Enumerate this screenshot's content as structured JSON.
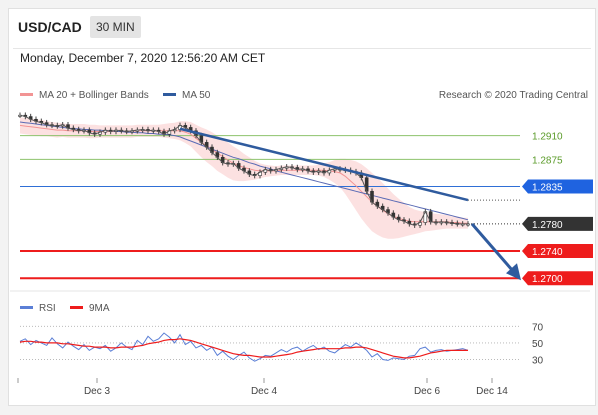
{
  "header": {
    "pair": "USD/CAD",
    "timeframe": "30 MIN"
  },
  "timestamp": "Monday, December 7, 2020 12:56:20 AM CET",
  "legend": {
    "ma20": "MA 20 + Bollinger Bands",
    "ma50": "MA 50",
    "credit": "Research © 2020 Trading Central"
  },
  "rsi_legend": {
    "rsi": "RSI",
    "ma9": "9MA"
  },
  "colors": {
    "accent_blue": "#2f5b9e",
    "resistance_green": "#8dc26c",
    "support_red": "#ee1c1c",
    "bollinger": "#fbdcdc",
    "ma20": "#f29494",
    "ma50": "#5a6bb5",
    "rsi": "#5b7fd6",
    "rsi_ma": "#ee1c1c"
  },
  "chart_data": [
    {
      "type": "candlestick",
      "x_ticks": [
        "Dec 3",
        "Dec 4",
        "Dec 6",
        "Dec 14"
      ],
      "ylim": [
        1.269,
        1.2955
      ],
      "levels": [
        {
          "value": "1.2910",
          "kind": "resistance"
        },
        {
          "value": "1.2875",
          "kind": "resistance"
        },
        {
          "value": "1.2835",
          "kind": "pivot"
        },
        {
          "value": "1.2780",
          "kind": "current"
        },
        {
          "value": "1.2740",
          "kind": "support"
        },
        {
          "value": "1.2700",
          "kind": "support"
        }
      ],
      "price_series": [
        1.294,
        1.2938,
        1.2934,
        1.2931,
        1.2929,
        1.2926,
        1.2925,
        1.2924,
        1.2926,
        1.2921,
        1.2919,
        1.2917,
        1.2918,
        1.2914,
        1.2912,
        1.2915,
        1.2918,
        1.2916,
        1.2918,
        1.2917,
        1.2916,
        1.2917,
        1.2918,
        1.2919,
        1.2917,
        1.2918,
        1.2916,
        1.2912,
        1.2917,
        1.2919,
        1.2925,
        1.2922,
        1.2917,
        1.291,
        1.29,
        1.2893,
        1.2885,
        1.2878,
        1.287,
        1.2868,
        1.2869,
        1.2862,
        1.2858,
        1.2853,
        1.2851,
        1.2856,
        1.286,
        1.2858,
        1.286,
        1.2862,
        1.2864,
        1.2863,
        1.286,
        1.2861,
        1.2858,
        1.2856,
        1.2858,
        1.2855,
        1.2859,
        1.2861,
        1.286,
        1.2859,
        1.2857,
        1.2855,
        1.2848,
        1.2828,
        1.2812,
        1.2806,
        1.2801,
        1.2796,
        1.279,
        1.2786,
        1.2784,
        1.278,
        1.2778,
        1.2782,
        1.2798,
        1.2783,
        1.2782,
        1.2783,
        1.2782,
        1.2781,
        1.278,
        1.278,
        1.278
      ],
      "ma20_series": [
        1.2925,
        1.2924,
        1.2923,
        1.2922,
        1.2921,
        1.292,
        1.2919,
        1.2918,
        1.2918,
        1.2917,
        1.2917,
        1.2917,
        1.2917,
        1.2916,
        1.2916,
        1.2916,
        1.2916,
        1.2916,
        1.2916,
        1.2916,
        1.2916,
        1.2916,
        1.2917,
        1.2917,
        1.2917,
        1.2917,
        1.2917,
        1.2917,
        1.2917,
        1.2917,
        1.2917,
        1.2915,
        1.2912,
        1.2906,
        1.29,
        1.2895,
        1.289,
        1.2884,
        1.2879,
        1.2874,
        1.2869,
        1.2866,
        1.2863,
        1.2861,
        1.2859,
        1.2858,
        1.2858,
        1.2858,
        1.2858,
        1.2859,
        1.2859,
        1.2859,
        1.2859,
        1.2859,
        1.2859,
        1.2859,
        1.2859,
        1.2859,
        1.2858,
        1.2857,
        1.2855,
        1.285,
        1.2843,
        1.2836,
        1.2828,
        1.282,
        1.2812,
        1.2806,
        1.28,
        1.2795,
        1.2791,
        1.2788,
        1.2786,
        1.2784,
        1.2783,
        1.2783,
        1.2783,
        1.2783,
        1.2783,
        1.2783,
        1.2783,
        1.2782,
        1.2782,
        1.2781,
        1.2781
      ],
      "ma50_series": [
        1.293,
        1.2929,
        1.2928,
        1.2927,
        1.2926,
        1.2925,
        1.2924,
        1.2923,
        1.2922,
        1.2921,
        1.292,
        1.292,
        1.2919,
        1.2919,
        1.2918,
        1.2918,
        1.2917,
        1.2917,
        1.2916,
        1.2916,
        1.2915,
        1.2915,
        1.2914,
        1.2914,
        1.2913,
        1.2913,
        1.2912,
        1.2912,
        1.2911,
        1.291,
        1.2908,
        1.2905,
        1.2902,
        1.2899,
        1.2896,
        1.2893,
        1.289,
        1.2887,
        1.2884,
        1.2881,
        1.2878,
        1.2876,
        1.2873,
        1.287,
        1.2868,
        1.2865,
        1.2863,
        1.2861,
        1.2858,
        1.2856,
        1.2854,
        1.2852,
        1.285,
        1.2848,
        1.2846,
        1.2844,
        1.2842,
        1.284,
        1.2838,
        1.2836,
        1.2834,
        1.2832,
        1.283,
        1.2828,
        1.2826,
        1.2824,
        1.2822,
        1.282,
        1.2818,
        1.2816,
        1.2814,
        1.2812,
        1.281,
        1.2808,
        1.2806,
        1.2804,
        1.2802,
        1.28,
        1.2798,
        1.2796,
        1.2794,
        1.2792,
        1.279,
        1.2788,
        1.2786
      ],
      "bollinger_width": [
        0.0012,
        0.0012,
        0.0012,
        0.0012,
        0.0012,
        0.0011,
        0.0011,
        0.0011,
        0.001,
        0.001,
        0.001,
        0.001,
        0.001,
        0.001,
        0.001,
        0.0009,
        0.0009,
        0.0009,
        0.0009,
        0.0009,
        0.0009,
        0.0009,
        0.0009,
        0.0009,
        0.0009,
        0.0009,
        0.0009,
        0.001,
        0.0011,
        0.0012,
        0.0014,
        0.0016,
        0.0018,
        0.002,
        0.0022,
        0.0024,
        0.0025,
        0.0026,
        0.0026,
        0.0026,
        0.0025,
        0.0023,
        0.002,
        0.0017,
        0.0014,
        0.0011,
        0.0009,
        0.0008,
        0.0007,
        0.0007,
        0.0007,
        0.0007,
        0.0007,
        0.0007,
        0.0007,
        0.0007,
        0.0008,
        0.001,
        0.0013,
        0.0017,
        0.0021,
        0.0026,
        0.0031,
        0.0036,
        0.004,
        0.0042,
        0.0043,
        0.0042,
        0.004,
        0.0037,
        0.0033,
        0.0029,
        0.0025,
        0.0021,
        0.0018,
        0.0016,
        0.0014,
        0.0013,
        0.0012,
        0.0011,
        0.001,
        0.0009,
        0.0009,
        0.0008,
        0.0008
      ],
      "trendline": {
        "from": 1.292,
        "to": 1.2815
      },
      "projection": {
        "from": 1.278,
        "to": 1.27
      }
    },
    {
      "type": "line",
      "ylim": [
        15,
        80
      ],
      "y_ticks": [
        "70",
        "50",
        "30"
      ],
      "series": [
        {
          "name": "RSI",
          "values": [
            52,
            55,
            48,
            53,
            50,
            47,
            56,
            49,
            44,
            51,
            46,
            42,
            48,
            41,
            45,
            43,
            47,
            40,
            44,
            50,
            45,
            42,
            53,
            48,
            58,
            52,
            55,
            62,
            57,
            50,
            60,
            48,
            52,
            44,
            47,
            41,
            45,
            35,
            40,
            34,
            30,
            35,
            39,
            32,
            28,
            31,
            35,
            34,
            38,
            42,
            39,
            43,
            45,
            40,
            44,
            47,
            42,
            45,
            40,
            38,
            43,
            48,
            45,
            50,
            46,
            41,
            33,
            37,
            30,
            29,
            32,
            31,
            30,
            34,
            35,
            43,
            45,
            39,
            41,
            42,
            40,
            41,
            42,
            43,
            41
          ]
        },
        {
          "name": "9MA",
          "values": [
            51,
            52,
            52,
            51,
            51,
            50,
            50,
            50,
            49,
            49,
            48,
            47,
            46,
            46,
            45,
            45,
            45,
            44,
            44,
            45,
            45,
            45,
            46,
            47,
            49,
            50,
            51,
            53,
            54,
            54,
            55,
            54,
            53,
            51,
            49,
            47,
            45,
            43,
            41,
            39,
            37,
            36,
            35,
            35,
            34,
            33,
            33,
            33,
            34,
            35,
            36,
            37,
            39,
            40,
            41,
            42,
            43,
            43,
            43,
            43,
            43,
            44,
            44,
            45,
            45,
            44,
            42,
            40,
            38,
            36,
            34,
            33,
            32,
            32,
            33,
            34,
            36,
            38,
            39,
            40,
            41,
            41,
            41,
            41,
            41
          ]
        }
      ]
    }
  ]
}
